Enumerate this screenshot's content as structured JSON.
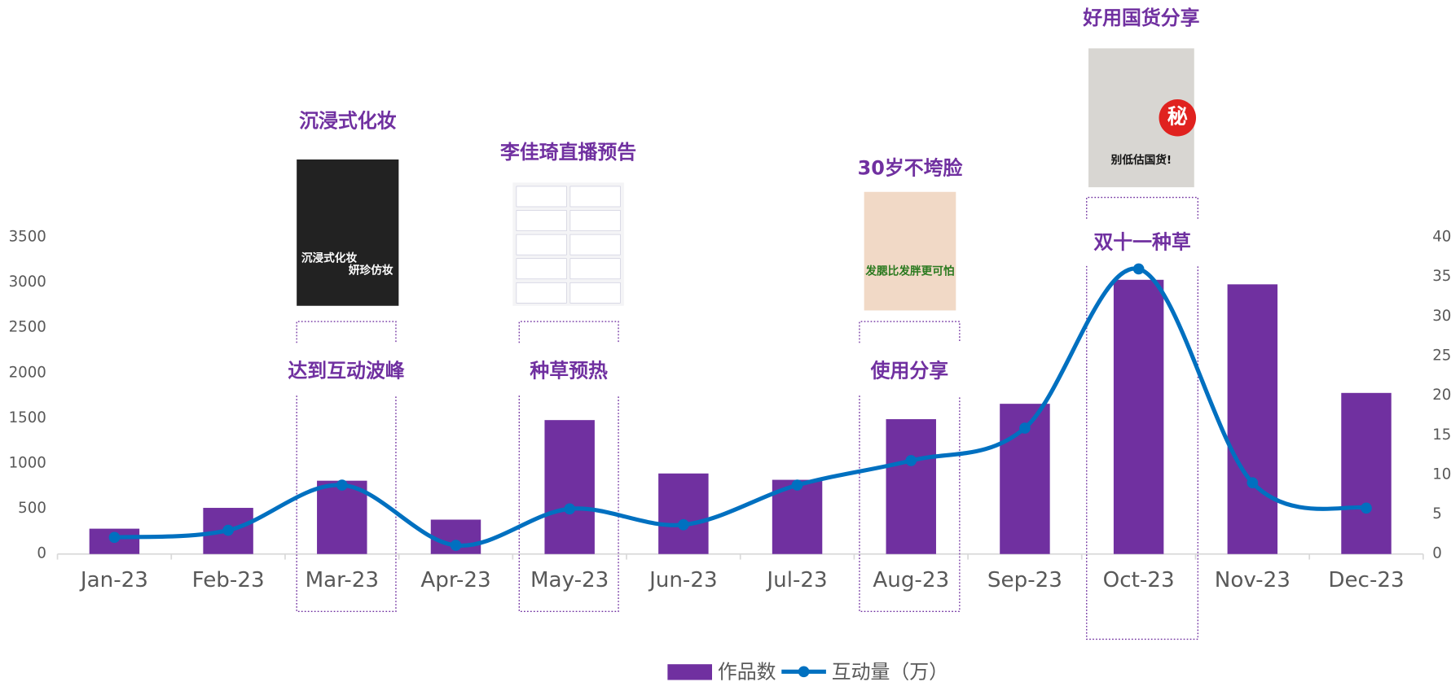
{
  "chart_data": {
    "type": "bar-line",
    "categories": [
      "Jan-23",
      "Feb-23",
      "Mar-23",
      "Apr-23",
      "May-23",
      "Jun-23",
      "Jul-23",
      "Aug-23",
      "Sep-23",
      "Oct-23",
      "Nov-23",
      "Dec-23"
    ],
    "series": [
      {
        "name": "作品数",
        "type": "bar",
        "color": "#7030a0",
        "values": [
          280,
          510,
          810,
          380,
          1480,
          890,
          820,
          1490,
          1660,
          3030,
          2980,
          1780
        ]
      },
      {
        "name": "互动量（万）",
        "type": "line",
        "axis": "y2",
        "color": "#0070c0",
        "values": [
          2.1,
          3.0,
          8.7,
          1.1,
          5.7,
          3.7,
          8.7,
          11.8,
          15.9,
          36,
          9.0,
          5.8
        ]
      }
    ],
    "ylim": [
      0,
      3500
    ],
    "yticks": [
      0,
      500,
      1000,
      1500,
      2000,
      2500,
      3000,
      3500
    ],
    "y2lim": [
      0,
      40
    ],
    "y2ticks": [
      0,
      5,
      10,
      15,
      20,
      25,
      30,
      35,
      40
    ],
    "legend": "bottom",
    "annotations": [
      {
        "category": "Mar-23",
        "title": "沉浸式化妆",
        "label": "达到互动波峰",
        "image_text": [
          "沉浸式化妆",
          "妍珍仿妆"
        ]
      },
      {
        "category": "May-23",
        "title": "李佳琦直播预告",
        "label": "种草预热",
        "image_text": []
      },
      {
        "category": "Aug-23",
        "title": "30岁不垮脸",
        "label": "使用分享",
        "image_text": [
          "发腮比发胖更可怕"
        ]
      },
      {
        "category": "Oct-23",
        "title": "好用国货分享",
        "label": "双十一种草",
        "image_text": [
          "秘",
          "别低估国货!"
        ]
      }
    ]
  }
}
